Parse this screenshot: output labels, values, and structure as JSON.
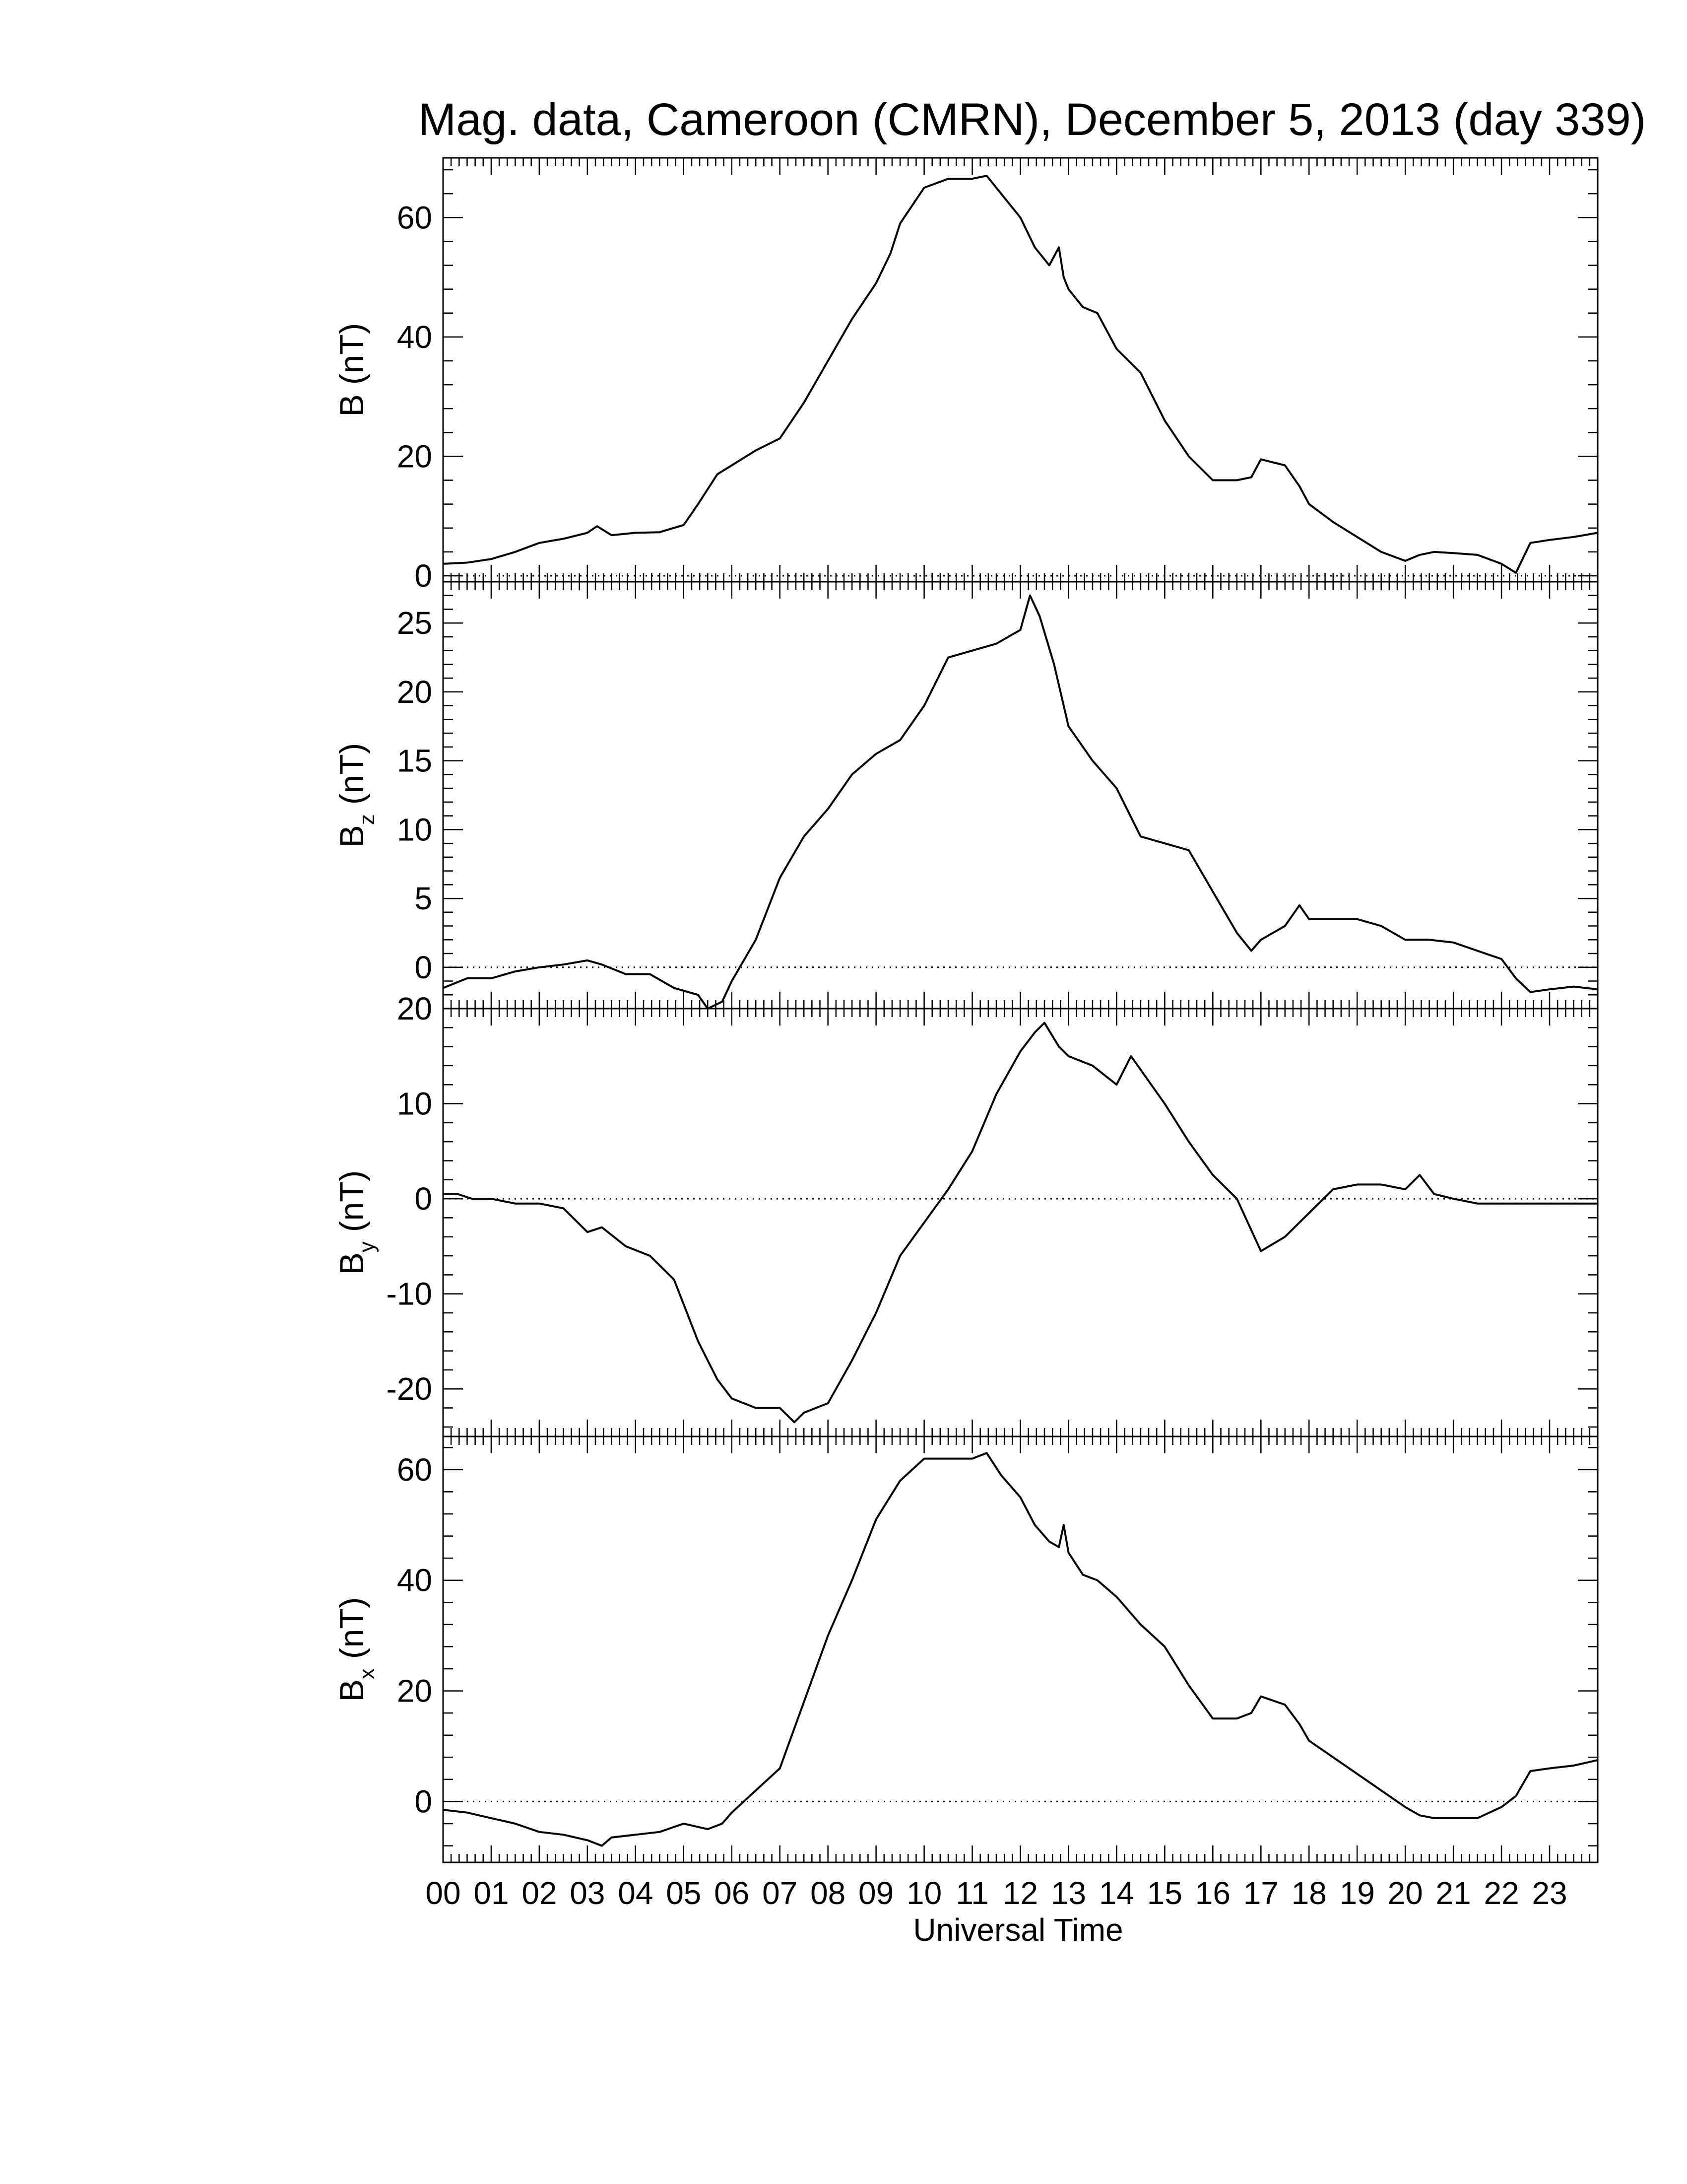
{
  "title": "Mag. data, Cameroon (CMRN), December 5, 2013 (day 339)",
  "xlabel": "Universal Time",
  "x_tick_labels": [
    "00",
    "01",
    "02",
    "03",
    "04",
    "05",
    "06",
    "07",
    "08",
    "09",
    "10",
    "11",
    "12",
    "13",
    "14",
    "15",
    "16",
    "17",
    "18",
    "19",
    "20",
    "21",
    "22",
    "23"
  ],
  "chart_data": [
    {
      "type": "line",
      "ylabel_main": "B",
      "ylabel_sub": "",
      "ylabel_unit": "(nT)",
      "xlim": [
        0,
        24
      ],
      "ylim": [
        -1,
        70
      ],
      "yticks": [
        0,
        20,
        40,
        60
      ],
      "ytick_labels": [
        "0",
        "20",
        "40",
        "60"
      ],
      "zero_line": true,
      "x": [
        0,
        0.5,
        1,
        1.5,
        2,
        2.5,
        3,
        3.2,
        3.5,
        4,
        4.5,
        5,
        5.3,
        5.7,
        6,
        6.5,
        7,
        7.5,
        8,
        8.5,
        9,
        9.3,
        9.5,
        10,
        10.5,
        11,
        11.3,
        11.6,
        12,
        12.3,
        12.6,
        12.8,
        12.9,
        13,
        13.3,
        13.6,
        14,
        14.5,
        15,
        15.5,
        16,
        16.5,
        16.8,
        17,
        17.5,
        17.8,
        18,
        18.5,
        19,
        19.5,
        20,
        20.3,
        20.6,
        21,
        21.5,
        22,
        22.3,
        22.6,
        23,
        23.5,
        24
      ],
      "values": [
        2,
        2.2,
        2.8,
        4,
        5.5,
        6.2,
        7.2,
        8.3,
        6.8,
        7.2,
        7.3,
        8.5,
        12,
        17,
        18.5,
        21,
        23,
        29,
        36,
        43,
        49,
        54,
        59,
        65,
        66.5,
        66.5,
        67,
        64,
        60,
        55,
        52,
        55,
        50,
        48,
        45,
        44,
        38,
        34,
        26,
        20,
        16,
        16,
        16.5,
        19.5,
        18.5,
        15,
        12,
        9,
        6.5,
        4,
        2.5,
        3.5,
        4,
        3.8,
        3.5,
        2,
        0.5,
        5.5,
        6,
        6.5,
        7.2
      ]
    },
    {
      "type": "line",
      "ylabel_main": "B",
      "ylabel_sub": "z",
      "ylabel_unit": "(nT)",
      "xlim": [
        0,
        24
      ],
      "ylim": [
        -3,
        28
      ],
      "yticks": [
        0,
        5,
        10,
        15,
        20,
        25
      ],
      "ytick_labels": [
        "0",
        "5",
        "10",
        "15",
        "20",
        "25"
      ],
      "zero_line": true,
      "x": [
        0,
        0.5,
        1,
        1.5,
        2,
        2.5,
        3,
        3.3,
        3.8,
        4.3,
        4.8,
        5.3,
        5.5,
        5.8,
        6,
        6.5,
        7,
        7.5,
        8,
        8.5,
        9,
        9.5,
        10,
        10.5,
        11,
        11.5,
        12,
        12.2,
        12.4,
        12.7,
        13,
        13.5,
        14,
        14.5,
        15,
        15.5,
        16,
        16.5,
        16.8,
        17,
        17.5,
        17.8,
        18,
        18.5,
        19,
        19.5,
        20,
        20.5,
        21,
        21.5,
        22,
        22.3,
        22.6,
        23,
        23.5,
        24
      ],
      "values": [
        -1.5,
        -0.8,
        -0.8,
        -0.3,
        0,
        0.2,
        0.5,
        0.2,
        -0.5,
        -0.5,
        -1.5,
        -2,
        -3,
        -2.5,
        -1,
        2,
        6.5,
        9.5,
        11.5,
        14,
        15.5,
        16.5,
        19,
        22.5,
        23,
        23.5,
        24.5,
        27,
        25.5,
        22,
        17.5,
        15,
        13,
        9.5,
        9,
        8.5,
        5.5,
        2.5,
        1.2,
        2,
        3,
        4.5,
        3.5,
        3.5,
        3.5,
        3,
        2,
        2,
        1.8,
        1.2,
        0.6,
        -0.8,
        -1.8,
        -1.6,
        -1.4,
        -1.6
      ]
    },
    {
      "type": "line",
      "ylabel_main": "B",
      "ylabel_sub": "y",
      "ylabel_unit": "(nT)",
      "xlim": [
        0,
        24
      ],
      "ylim": [
        -25,
        20
      ],
      "yticks": [
        -20,
        -10,
        0,
        10,
        20
      ],
      "ytick_labels": [
        "-20",
        "-10",
        "0",
        "10",
        "20"
      ],
      "zero_line": true,
      "x": [
        0,
        0.3,
        0.6,
        1,
        1.5,
        2,
        2.5,
        3,
        3.3,
        3.8,
        4.3,
        4.8,
        5.3,
        5.7,
        6,
        6.5,
        7,
        7.3,
        7.5,
        8,
        8.5,
        9,
        9.5,
        10,
        10.5,
        11,
        11.5,
        12,
        12.3,
        12.5,
        12.8,
        13,
        13.5,
        14,
        14.3,
        15,
        15.5,
        16,
        16.5,
        17,
        17.5,
        18,
        18.5,
        19,
        19.5,
        20,
        20.3,
        20.6,
        21,
        21.5,
        22,
        22.5,
        23,
        23.5,
        24
      ],
      "values": [
        0.5,
        0.5,
        0,
        0,
        -0.5,
        -0.5,
        -1,
        -3.5,
        -3,
        -5,
        -6,
        -8.5,
        -15,
        -19,
        -21,
        -22,
        -22,
        -23.5,
        -22.5,
        -21.5,
        -17,
        -12,
        -6,
        -2.5,
        1,
        5,
        11,
        15.5,
        17.5,
        18.5,
        16,
        15,
        14,
        12,
        15,
        10,
        6,
        2.5,
        0,
        -5.5,
        -4,
        -1.5,
        1,
        1.5,
        1.5,
        1,
        2.5,
        0.5,
        0,
        -0.5,
        -0.5,
        -0.5,
        -0.5,
        -0.5,
        -0.5
      ]
    },
    {
      "type": "line",
      "ylabel_main": "B",
      "ylabel_sub": "x",
      "ylabel_unit": "(nT)",
      "xlim": [
        0,
        24
      ],
      "ylim": [
        -11,
        66
      ],
      "yticks": [
        0,
        20,
        40,
        60
      ],
      "ytick_labels": [
        "0",
        "20",
        "40",
        "60"
      ],
      "zero_line": true,
      "x": [
        0,
        0.5,
        1,
        1.5,
        2,
        2.5,
        3,
        3.3,
        3.5,
        4,
        4.5,
        5,
        5.5,
        5.8,
        6,
        6.5,
        7,
        7.5,
        8,
        8.5,
        9,
        9.5,
        10,
        10.5,
        11,
        11.3,
        11.6,
        12,
        12.3,
        12.6,
        12.8,
        12.9,
        13,
        13.3,
        13.6,
        14,
        14.5,
        15,
        15.5,
        16,
        16.5,
        16.8,
        17,
        17.5,
        17.8,
        18,
        18.5,
        19,
        19.5,
        20,
        20.3,
        20.6,
        21,
        21.5,
        22,
        22.3,
        22.6,
        23,
        23.5,
        24
      ],
      "values": [
        -1.5,
        -2,
        -3,
        -4,
        -5.5,
        -6,
        -7,
        -8,
        -6.5,
        -6,
        -5.5,
        -4,
        -5,
        -4,
        -2,
        2,
        6,
        18,
        30,
        40,
        51,
        58,
        62,
        62,
        62,
        63,
        59,
        55,
        50,
        47,
        46,
        50,
        45,
        41,
        40,
        37,
        32,
        28,
        21,
        15,
        15,
        16,
        19,
        17.5,
        14,
        11,
        8,
        5,
        2,
        -1,
        -2.5,
        -3,
        -3,
        -3,
        -1,
        1,
        5.5,
        6,
        6.5,
        7.5
      ]
    }
  ]
}
